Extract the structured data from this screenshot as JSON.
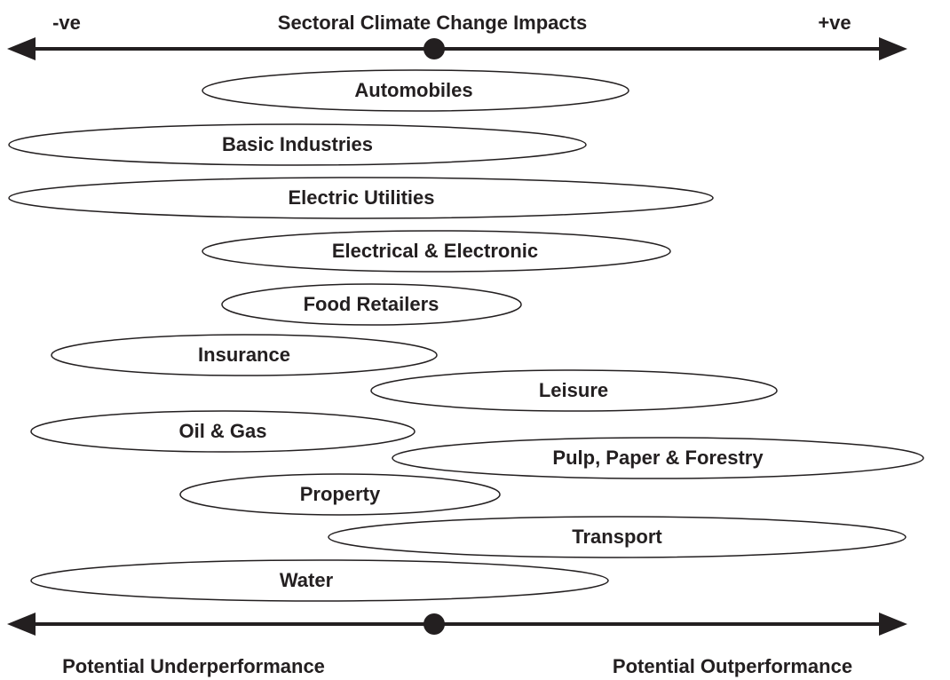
{
  "header": {
    "left_label": "-ve",
    "title": "Sectoral Climate Change Impacts",
    "right_label": "+ve"
  },
  "sectors": [
    "Automobiles",
    "Basic Industries",
    "Electric Utilities",
    "Electrical & Electronic",
    "Food Retailers",
    "Insurance",
    "Leisure",
    "Oil & Gas",
    "Pulp, Paper & Forestry",
    "Property",
    "Transport",
    "Water"
  ],
  "footer": {
    "left_label": "Potential Underperformance",
    "right_label": "Potential Outperformance"
  }
}
